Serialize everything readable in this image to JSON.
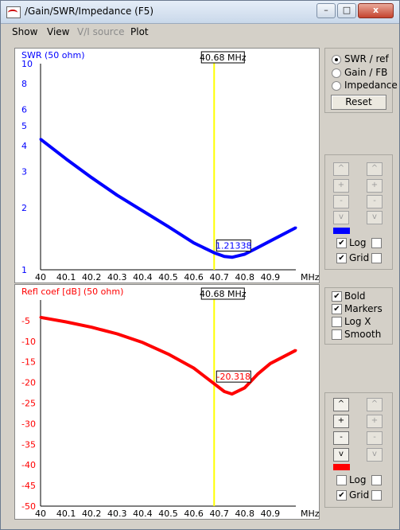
{
  "window": {
    "title": "/Gain/SWR/Impedance (F5)",
    "minimize_glyph": "–",
    "maximize_glyph": "□",
    "close_glyph": "x"
  },
  "menu": {
    "items": [
      {
        "label": "Show",
        "disabled": false
      },
      {
        "label": "View",
        "disabled": false
      },
      {
        "label": "V/I source",
        "disabled": true
      },
      {
        "label": "Plot",
        "disabled": false
      }
    ]
  },
  "mode_panel": {
    "options": [
      {
        "label": "SWR / ref",
        "selected": true
      },
      {
        "label": "Gain / FB",
        "selected": false
      },
      {
        "label": "Impedance",
        "selected": false
      }
    ],
    "reset_label": "Reset"
  },
  "swr_controls": {
    "left_buttons": [
      "^",
      "+",
      "-",
      "v"
    ],
    "right_buttons": [
      "^",
      "+",
      "-",
      "v"
    ],
    "active": false,
    "color": "#0000ff",
    "checks": [
      {
        "label": "Log",
        "checked": true,
        "right_checked": false
      },
      {
        "label": "Grid",
        "checked": true,
        "right_checked": false
      }
    ]
  },
  "style_panel": {
    "options": [
      {
        "label": "Bold",
        "checked": true
      },
      {
        "label": "Markers",
        "checked": true
      },
      {
        "label": "Log X",
        "checked": false
      },
      {
        "label": "Smooth",
        "checked": false
      }
    ]
  },
  "refl_controls": {
    "left_buttons": [
      "^",
      "+",
      "-",
      "v"
    ],
    "right_buttons": [
      "^",
      "+",
      "-",
      "v"
    ],
    "active": true,
    "color": "#ff0000",
    "checks": [
      {
        "label": "Log",
        "checked": false,
        "right_checked": false
      },
      {
        "label": "Grid",
        "checked": true,
        "right_checked": false
      }
    ]
  },
  "chart_data": [
    {
      "type": "line",
      "title": "SWR (50 ohm)",
      "series_color": "#0000ff",
      "x_ticks": [
        "40",
        "40.1",
        "40.2",
        "40.3",
        "40.4",
        "40.5",
        "40.6",
        "40.7",
        "40.8",
        "40.9"
      ],
      "x_unit": "MHz",
      "xlim": [
        40,
        41.0
      ],
      "y_scale": "log",
      "ylim": [
        1,
        10
      ],
      "y_ticks": [
        "1",
        "2",
        "3",
        "4",
        "5",
        "6",
        "8",
        "10"
      ],
      "marker_label": "40.68 MHz",
      "marker_x": 40.68,
      "value_label": "1.21338",
      "grid": true,
      "x": [
        40.0,
        40.1,
        40.2,
        40.3,
        40.4,
        40.5,
        40.6,
        40.68,
        40.72,
        40.75,
        40.8,
        40.85,
        40.9,
        41.0
      ],
      "y": [
        4.3,
        3.45,
        2.8,
        2.3,
        1.93,
        1.62,
        1.35,
        1.21,
        1.16,
        1.15,
        1.19,
        1.28,
        1.38,
        1.6
      ]
    },
    {
      "type": "line",
      "title": "Refl coef [dB] (50 ohm)",
      "series_color": "#ff0000",
      "x_ticks": [
        "40",
        "40.1",
        "40.2",
        "40.3",
        "40.4",
        "40.5",
        "40.6",
        "40.7",
        "40.8",
        "40.9"
      ],
      "x_unit": "MHz",
      "xlim": [
        40,
        41.0
      ],
      "ylim": [
        -50,
        0
      ],
      "y_ticks": [
        "-5",
        "-10",
        "-15",
        "-20",
        "-25",
        "-30",
        "-35",
        "-40",
        "-45",
        "-50"
      ],
      "marker_label": "40.68 MHz",
      "marker_x": 40.68,
      "value_label": "-20.318",
      "grid": true,
      "x": [
        40.0,
        40.1,
        40.2,
        40.3,
        40.4,
        40.5,
        40.6,
        40.68,
        40.72,
        40.75,
        40.8,
        40.85,
        40.9,
        41.0
      ],
      "y": [
        -4.2,
        -5.3,
        -6.6,
        -8.2,
        -10.3,
        -13.1,
        -16.5,
        -20.3,
        -22.2,
        -22.8,
        -21.3,
        -18.0,
        -15.4,
        -12.2
      ]
    }
  ]
}
